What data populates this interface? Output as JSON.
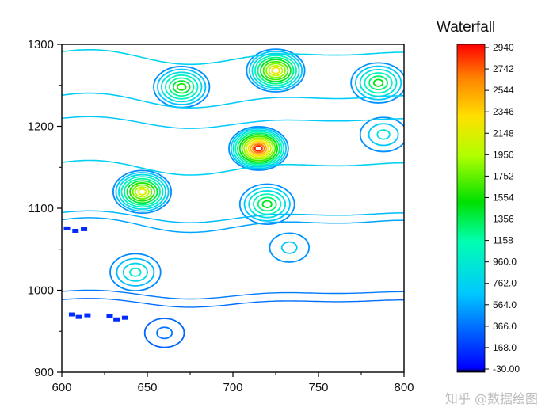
{
  "watermark": "知乎 @数据绘图",
  "chart_data": {
    "type": "contour",
    "title": "Waterfall",
    "xlabel": "",
    "ylabel": "",
    "xlim": [
      600,
      800
    ],
    "ylim": [
      900,
      1300
    ],
    "x_ticks": [
      "600",
      "650",
      "700",
      "750",
      "800"
    ],
    "y_ticks": [
      "900",
      "1000",
      "1100",
      "1200",
      "1300"
    ],
    "colorbar": {
      "min": -30.0,
      "max": 2940,
      "labels": [
        "2940",
        "2742",
        "2544",
        "2346",
        "2148",
        "1950",
        "1752",
        "1554",
        "1356",
        "1158",
        "960.0",
        "762.0",
        "564.0",
        "366.0",
        "168.0",
        "-30.00"
      ],
      "colors": [
        "#000000",
        "#0000ff",
        "#00c8ff",
        "#00ffb0",
        "#00e000",
        "#b0ff00",
        "#ffe000",
        "#ff8000",
        "#ff0000"
      ]
    },
    "peaks": [
      {
        "x": 725,
        "y": 1268,
        "value": 2300
      },
      {
        "x": 670,
        "y": 1248,
        "value": 1650
      },
      {
        "x": 785,
        "y": 1253,
        "value": 1550
      },
      {
        "x": 715,
        "y": 1173,
        "value": 2940
      },
      {
        "x": 647,
        "y": 1120,
        "value": 2200
      },
      {
        "x": 720,
        "y": 1105,
        "value": 1550
      },
      {
        "x": 643,
        "y": 1022,
        "value": 1050
      },
      {
        "x": 733,
        "y": 1052,
        "value": 780
      },
      {
        "x": 660,
        "y": 948,
        "value": 420
      },
      {
        "x": 788,
        "y": 1190,
        "value": 950
      }
    ]
  }
}
